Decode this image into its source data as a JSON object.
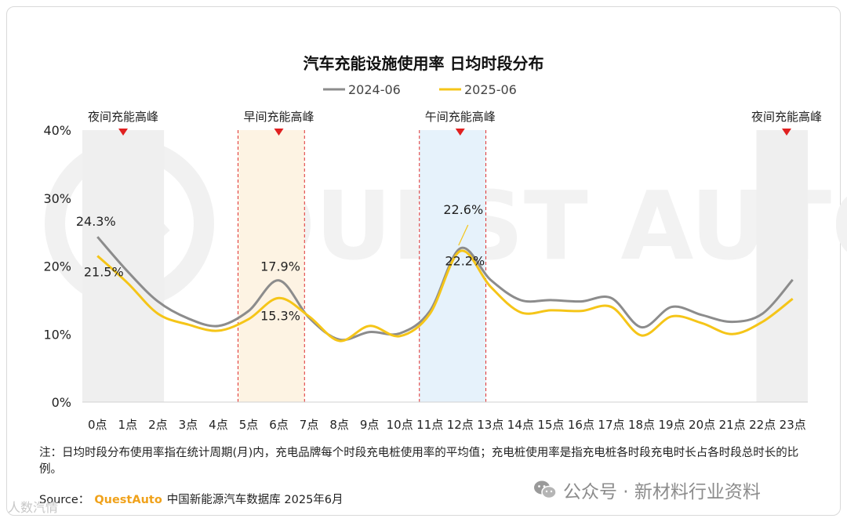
{
  "chart_data": {
    "type": "line",
    "title": "汽车充能设施使用率 日均时段分布",
    "x": [
      "0点",
      "1点",
      "2点",
      "3点",
      "4点",
      "5点",
      "6点",
      "7点",
      "8点",
      "9点",
      "10点",
      "11点",
      "12点",
      "13点",
      "14点",
      "15点",
      "16点",
      "17点",
      "18点",
      "19点",
      "20点",
      "21点",
      "22点",
      "23点"
    ],
    "series": [
      {
        "name": "2024-06",
        "color": "#8c8c8c",
        "values": [
          24.3,
          19.2,
          14.8,
          12.3,
          11.2,
          13.4,
          17.9,
          12.4,
          9.2,
          10.3,
          10.1,
          13.4,
          22.6,
          18.0,
          15.0,
          15.0,
          14.8,
          15.3,
          11.0,
          14.0,
          12.8,
          11.8,
          13.0,
          18.0
        ]
      },
      {
        "name": "2025-06",
        "color": "#f5c518",
        "values": [
          21.5,
          17.5,
          13.0,
          11.4,
          10.5,
          12.2,
          15.3,
          12.6,
          9.0,
          11.2,
          9.7,
          13.0,
          22.2,
          17.0,
          13.2,
          13.5,
          13.4,
          14.0,
          9.8,
          12.6,
          11.6,
          10.0,
          11.8,
          15.2
        ]
      }
    ],
    "ylim": [
      0,
      40
    ],
    "yticks": [
      0,
      10,
      20,
      30,
      40
    ],
    "ytick_labels": [
      "0%",
      "10%",
      "20%",
      "30%",
      "40%"
    ],
    "legend_position": "top-center",
    "grid": false,
    "data_labels": [
      {
        "series": 0,
        "index": 0,
        "text": "24.3%"
      },
      {
        "series": 1,
        "index": 0,
        "text": "21.5%"
      },
      {
        "series": 0,
        "index": 6,
        "text": "17.9%"
      },
      {
        "series": 1,
        "index": 6,
        "text": "15.3%"
      },
      {
        "series": 0,
        "index": 12,
        "text": "22.6%"
      },
      {
        "series": 1,
        "index": 12,
        "text": "22.2%"
      }
    ],
    "bands": [
      {
        "label": "夜间充能高峰",
        "style": "gray",
        "from": 0,
        "to": 2,
        "marker": 1
      },
      {
        "label": "早间充能高峰",
        "style": "orange",
        "from": 5,
        "to": 7,
        "marker": 6
      },
      {
        "label": "午间充能高峰",
        "style": "blue",
        "from": 11,
        "to": 13,
        "marker": 12
      },
      {
        "label": "夜间充能高峰",
        "style": "gray",
        "from": 22,
        "to": 23,
        "marker": 23
      }
    ],
    "band_colors": {
      "gray": "#efefef",
      "orange": "#fdf3e3",
      "blue": "#e6f2fb",
      "dash": "#e03030",
      "marker": "#e02020"
    },
    "watermark": "QUEST AUTO"
  },
  "note": "注：日均时段分布使用率指在统计周期(月)内，充电品牌每个时段充电桩使用率的平均值；充电桩使用率是指充电桩各时段充电时长占各时段总时长的比例。",
  "source": {
    "prefix": "Source：",
    "brand": "QuestAuto",
    "text": "中国新能源汽车数据库 2025年6月"
  },
  "wechat": {
    "text": "公众号 · 新材料行业资料"
  },
  "bottom_watermark": "人数汽情"
}
